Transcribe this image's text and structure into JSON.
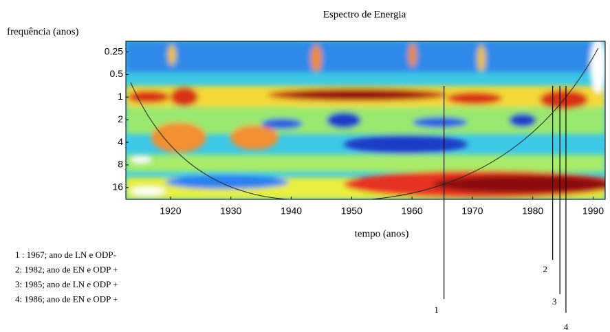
{
  "chart_data": {
    "type": "wavelet",
    "title": "Espectro de Energia",
    "y_label": "frequência (anos)",
    "x_label": "tempo (anos)",
    "xlim": [
      1912.6,
      1992
    ],
    "xticks": [
      1920,
      1930,
      1940,
      1950,
      1960,
      1970,
      1980,
      1990
    ],
    "ylim": [
      0.18,
      23
    ],
    "yticks": [
      0.25,
      0.5,
      1,
      2,
      4,
      8,
      16
    ],
    "log_y": true,
    "markers": [
      {
        "label": "1",
        "x": 1965.3
      },
      {
        "label": "2",
        "x": 1983.3
      },
      {
        "label": "3",
        "x": 1984.5
      },
      {
        "label": "4",
        "x": 1985.5
      }
    ],
    "legend": [
      "1 : 1967; ano de LN e ODP-",
      "2: 1982; ano de EN e ODP +",
      "3: 1985; ano de LN e ODP +",
      "4: 1986; ano de EN e ODP +"
    ]
  }
}
